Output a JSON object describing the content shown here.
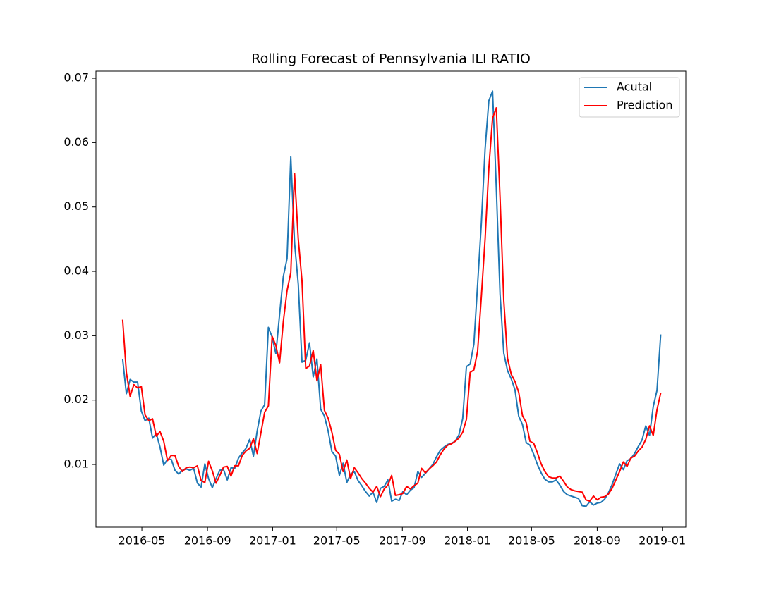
{
  "chart_data": {
    "type": "line",
    "title": "Rolling Forecast of Pennsylvania ILI RATIO",
    "x": [
      "2016-03-26",
      "2016-04-02",
      "2016-04-09",
      "2016-04-16",
      "2016-04-23",
      "2016-04-30",
      "2016-05-07",
      "2016-05-14",
      "2016-05-21",
      "2016-05-28",
      "2016-06-04",
      "2016-06-11",
      "2016-06-18",
      "2016-06-25",
      "2016-07-02",
      "2016-07-09",
      "2016-07-16",
      "2016-07-23",
      "2016-07-30",
      "2016-08-06",
      "2016-08-13",
      "2016-08-20",
      "2016-08-27",
      "2016-09-03",
      "2016-09-10",
      "2016-09-17",
      "2016-09-24",
      "2016-10-01",
      "2016-10-08",
      "2016-10-15",
      "2016-10-22",
      "2016-10-29",
      "2016-11-05",
      "2016-11-12",
      "2016-11-19",
      "2016-11-26",
      "2016-12-03",
      "2016-12-10",
      "2016-12-17",
      "2016-12-24",
      "2016-12-31",
      "2017-01-07",
      "2017-01-14",
      "2017-01-21",
      "2017-01-28",
      "2017-02-04",
      "2017-02-11",
      "2017-02-18",
      "2017-02-25",
      "2017-03-04",
      "2017-03-11",
      "2017-03-18",
      "2017-03-25",
      "2017-04-01",
      "2017-04-08",
      "2017-04-15",
      "2017-04-22",
      "2017-04-29",
      "2017-05-06",
      "2017-05-13",
      "2017-05-20",
      "2017-05-27",
      "2017-06-03",
      "2017-06-10",
      "2017-06-17",
      "2017-06-24",
      "2017-07-01",
      "2017-07-08",
      "2017-07-15",
      "2017-07-22",
      "2017-07-29",
      "2017-08-05",
      "2017-08-12",
      "2017-08-19",
      "2017-08-26",
      "2017-09-02",
      "2017-09-09",
      "2017-09-16",
      "2017-09-23",
      "2017-09-30",
      "2017-10-07",
      "2017-10-14",
      "2017-10-21",
      "2017-10-28",
      "2017-11-04",
      "2017-11-11",
      "2017-11-18",
      "2017-11-25",
      "2017-12-02",
      "2017-12-09",
      "2017-12-16",
      "2017-12-23",
      "2017-12-30",
      "2018-01-06",
      "2018-01-13",
      "2018-01-20",
      "2018-01-27",
      "2018-02-03",
      "2018-02-10",
      "2018-02-17",
      "2018-02-24",
      "2018-03-03",
      "2018-03-10",
      "2018-03-17",
      "2018-03-24",
      "2018-03-31",
      "2018-04-07",
      "2018-04-14",
      "2018-04-21",
      "2018-04-28",
      "2018-05-05",
      "2018-05-12",
      "2018-05-19",
      "2018-05-26",
      "2018-06-02",
      "2018-06-09",
      "2018-06-16",
      "2018-06-23",
      "2018-06-30",
      "2018-07-07",
      "2018-07-14",
      "2018-07-21",
      "2018-07-28",
      "2018-08-04",
      "2018-08-11",
      "2018-08-18",
      "2018-08-25",
      "2018-09-01",
      "2018-09-08",
      "2018-09-15",
      "2018-09-22",
      "2018-09-29",
      "2018-10-06",
      "2018-10-13",
      "2018-10-20",
      "2018-10-27",
      "2018-11-03",
      "2018-11-10",
      "2018-11-17",
      "2018-11-24",
      "2018-12-01",
      "2018-12-08",
      "2018-12-15",
      "2018-12-22",
      "2018-12-29"
    ],
    "series": [
      {
        "name": "Acutal",
        "color": "#1f77b4",
        "values": [
          0.0264,
          0.021,
          0.0232,
          0.0228,
          0.0228,
          0.0183,
          0.0168,
          0.0172,
          0.0141,
          0.0148,
          0.0127,
          0.0099,
          0.0108,
          0.0108,
          0.0091,
          0.0085,
          0.0091,
          0.0093,
          0.0091,
          0.0094,
          0.0071,
          0.0065,
          0.0101,
          0.0078,
          0.0064,
          0.0078,
          0.0091,
          0.0092,
          0.0076,
          0.0095,
          0.0094,
          0.011,
          0.0118,
          0.0125,
          0.0139,
          0.0113,
          0.0152,
          0.0183,
          0.0193,
          0.0313,
          0.0298,
          0.0272,
          0.0333,
          0.0392,
          0.042,
          0.0578,
          0.0445,
          0.038,
          0.0259,
          0.0262,
          0.0289,
          0.0236,
          0.0264,
          0.0186,
          0.0175,
          0.0152,
          0.012,
          0.0113,
          0.0083,
          0.0102,
          0.0072,
          0.0085,
          0.0089,
          0.0075,
          0.0067,
          0.0058,
          0.0051,
          0.0057,
          0.0041,
          0.0063,
          0.0066,
          0.0076,
          0.0043,
          0.0046,
          0.0044,
          0.0058,
          0.0053,
          0.006,
          0.0064,
          0.0089,
          0.008,
          0.0086,
          0.0093,
          0.01,
          0.0112,
          0.0122,
          0.0127,
          0.0131,
          0.0133,
          0.0136,
          0.0146,
          0.0171,
          0.0252,
          0.0256,
          0.0287,
          0.038,
          0.0475,
          0.059,
          0.0665,
          0.068,
          0.053,
          0.0365,
          0.0273,
          0.0246,
          0.0233,
          0.0216,
          0.0175,
          0.0162,
          0.0134,
          0.013,
          0.0116,
          0.01,
          0.0087,
          0.0077,
          0.0073,
          0.0073,
          0.0076,
          0.0068,
          0.0058,
          0.0053,
          0.0051,
          0.0049,
          0.0047,
          0.0036,
          0.0035,
          0.0042,
          0.0037,
          0.004,
          0.0041,
          0.0046,
          0.0056,
          0.0069,
          0.0085,
          0.0101,
          0.0092,
          0.0106,
          0.0109,
          0.0117,
          0.0128,
          0.0138,
          0.016,
          0.0145,
          0.019,
          0.0215,
          0.0302
        ]
      },
      {
        "name": "Prediction",
        "color": "#ff0000",
        "values": [
          0.0325,
          0.0243,
          0.0206,
          0.0224,
          0.0219,
          0.0221,
          0.0177,
          0.0168,
          0.0171,
          0.0144,
          0.0151,
          0.0136,
          0.0106,
          0.0114,
          0.0114,
          0.0097,
          0.0089,
          0.0095,
          0.0096,
          0.0095,
          0.0098,
          0.0075,
          0.0072,
          0.0105,
          0.009,
          0.0071,
          0.0083,
          0.0096,
          0.0097,
          0.0082,
          0.0098,
          0.0098,
          0.0114,
          0.0121,
          0.0125,
          0.014,
          0.0117,
          0.0149,
          0.0181,
          0.0191,
          0.0299,
          0.0285,
          0.0258,
          0.0322,
          0.037,
          0.0398,
          0.0552,
          0.045,
          0.0385,
          0.0249,
          0.0253,
          0.0277,
          0.023,
          0.0255,
          0.0184,
          0.0172,
          0.015,
          0.0122,
          0.0116,
          0.0089,
          0.0107,
          0.0078,
          0.0095,
          0.0087,
          0.0078,
          0.0071,
          0.0063,
          0.0057,
          0.0066,
          0.005,
          0.0062,
          0.0068,
          0.0083,
          0.0052,
          0.0053,
          0.0055,
          0.0066,
          0.0062,
          0.0067,
          0.0071,
          0.0094,
          0.0087,
          0.0093,
          0.0098,
          0.0104,
          0.0115,
          0.0124,
          0.013,
          0.0132,
          0.0136,
          0.0141,
          0.015,
          0.017,
          0.0243,
          0.0247,
          0.0276,
          0.0361,
          0.045,
          0.056,
          0.0638,
          0.0654,
          0.0515,
          0.0355,
          0.0265,
          0.024,
          0.0229,
          0.0212,
          0.0176,
          0.0165,
          0.0136,
          0.0133,
          0.0118,
          0.0101,
          0.0089,
          0.0081,
          0.0079,
          0.0079,
          0.0082,
          0.0074,
          0.0065,
          0.0061,
          0.0059,
          0.0058,
          0.0057,
          0.0045,
          0.0043,
          0.0051,
          0.0045,
          0.0049,
          0.005,
          0.0054,
          0.0063,
          0.0076,
          0.0089,
          0.0104,
          0.0097,
          0.011,
          0.0113,
          0.0121,
          0.0127,
          0.0139,
          0.016,
          0.0145,
          0.0185,
          0.0211
        ]
      }
    ],
    "xlim": [
      "2016-02-05",
      "2019-02-14"
    ],
    "xticks": [
      {
        "value": "2016-05-01",
        "label": "2016-05"
      },
      {
        "value": "2016-09-01",
        "label": "2016-09"
      },
      {
        "value": "2017-01-01",
        "label": "2017-01"
      },
      {
        "value": "2017-05-01",
        "label": "2017-05"
      },
      {
        "value": "2017-09-01",
        "label": "2017-09"
      },
      {
        "value": "2018-01-01",
        "label": "2018-01"
      },
      {
        "value": "2018-05-01",
        "label": "2018-05"
      },
      {
        "value": "2018-09-01",
        "label": "2018-09"
      },
      {
        "value": "2019-01-01",
        "label": "2019-01"
      }
    ],
    "ylim": [
      0.00026,
      0.0711
    ],
    "yticks": [
      0.01,
      0.02,
      0.03,
      0.04,
      0.05,
      0.06,
      0.07
    ],
    "legend": "upper right"
  }
}
